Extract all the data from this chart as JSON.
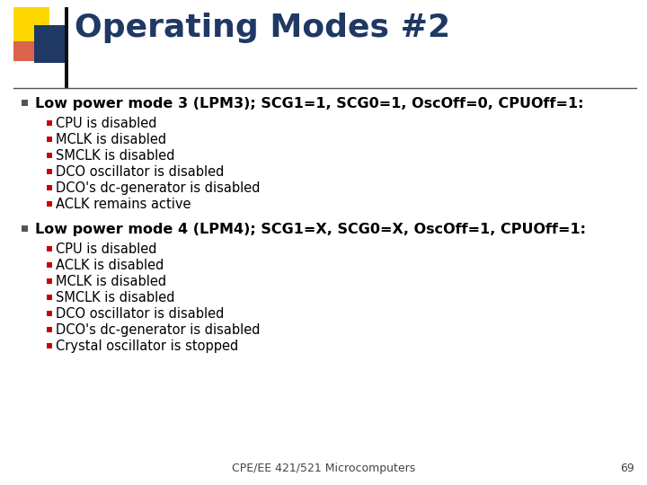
{
  "title": "Operating Modes #2",
  "title_color": "#1F3864",
  "title_fontsize": 26,
  "background_color": "#FFFFFF",
  "section1_header": "Low power mode 3 (LPM3); SCG1=1, SCG0=1, OscOff=0, CPUOff=1:",
  "section1_items": [
    "CPU is disabled",
    "MCLK is disabled",
    "SMCLK is disabled",
    "DCO oscillator is disabled",
    "DCO's dc-generator is disabled",
    "ACLK remains active"
  ],
  "section2_header": "Low power mode 4 (LPM4); SCG1=X, SCG0=X, OscOff=1, CPUOff=1:",
  "section2_items": [
    "CPU is disabled",
    "ACLK is disabled",
    "MCLK is disabled",
    "SMCLK is disabled",
    "DCO oscillator is disabled",
    "DCO's dc-generator is disabled",
    "Crystal oscillator is stopped"
  ],
  "footer_text": "CPE/EE 421/521 Microcomputers",
  "footer_page": "69",
  "header_color": "#000000",
  "item_color": "#000000",
  "bullet_l1_color": "#555555",
  "bullet_l2_color": "#CC0000",
  "header_fontsize": 11.5,
  "item_fontsize": 10.5,
  "footer_fontsize": 9,
  "logo_yellow": "#FFD700",
  "logo_red": "#CC2200",
  "logo_blue": "#1F3864",
  "divider_color": "#555555"
}
